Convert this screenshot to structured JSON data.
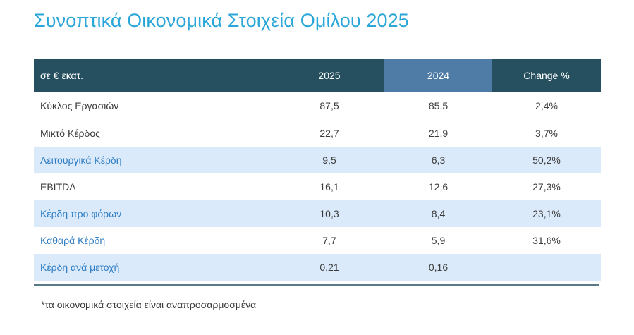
{
  "title": "Συνοπτικά Οικονομικά Στοιχεία Ομίλου 2025",
  "table": {
    "headers": [
      "σε € εκατ.",
      "2025",
      "2024",
      "Change %"
    ],
    "rows": [
      {
        "label": "Κύκλος Εργασιών",
        "v2025": "87,5",
        "v2024": "85,5",
        "change": "2,4%"
      },
      {
        "label": "Μικτό Κέρδος",
        "v2025": "22,7",
        "v2024": "21,9",
        "change": "3,7%"
      },
      {
        "label": "Λειτουργικά Κέρδη",
        "v2025": "9,5",
        "v2024": "6,3",
        "change": "50,2%"
      },
      {
        "label": "EBITDA",
        "v2025": "16,1",
        "v2024": "12,6",
        "change": "27,3%"
      },
      {
        "label": "Κέρδη προ φόρων",
        "v2025": "10,3",
        "v2024": "8,4",
        "change": "23,1%"
      },
      {
        "label": "Καθαρά Κέρδη",
        "v2025": "7,7",
        "v2024": "5,9",
        "change": "31,6%"
      },
      {
        "label": "Κέρδη ανά μετοχή",
        "v2025": "0,21",
        "v2024": "0,16",
        "change": ""
      }
    ]
  },
  "footnote": "*τα οικονομικά στοιχεία είναι αναπροσαρμοσμένα",
  "colors": {
    "title": "#2aa7d8",
    "header_bg": "#26505f",
    "header_highlight": "#4f7ba7",
    "alt_row_bg": "#dbeafa",
    "alt_row_label": "#2f7dc4"
  }
}
